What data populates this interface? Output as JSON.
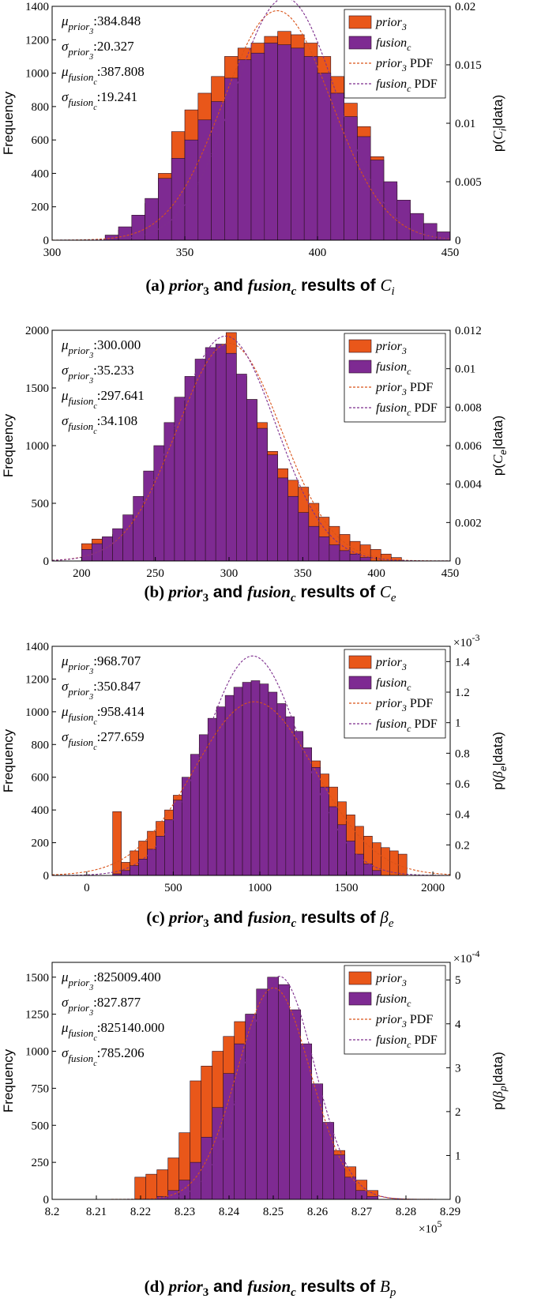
{
  "colors": {
    "prior": "#E9571A",
    "fusion": "#7E2A92",
    "prior_pdf": "#D95319",
    "fusion_pdf": "#7E2F8E",
    "bar_edge": "#3a1a1a"
  },
  "chart_data": [
    {
      "type": "bar",
      "panel": "a",
      "xlim": [
        300,
        450
      ],
      "xticks": [
        300,
        350,
        400,
        450
      ],
      "ylim": [
        0,
        1400
      ],
      "yticks": [
        0,
        200,
        400,
        600,
        800,
        1000,
        1200,
        1400
      ],
      "y2lim": [
        0,
        0.02
      ],
      "y2ticks": [
        "0",
        "0.005",
        "0.01",
        "0.015",
        "0.02"
      ],
      "y2exponent": "",
      "xlabel": "",
      "ylabel": "Frequency",
      "y2label": "p(C_i|data)",
      "stats": [
        {
          "sym": "μ",
          "sub": "prior",
          "subsub": "3",
          "value": ":384.848"
        },
        {
          "sym": "σ",
          "sub": "prior",
          "subsub": "3",
          "value": ":20.327"
        },
        {
          "sym": "μ",
          "sub": "fusion",
          "subsub": "c",
          "value": ":387.808"
        },
        {
          "sym": "σ",
          "sub": "fusion",
          "subsub": "c",
          "value": ":19.241"
        }
      ],
      "legend": {
        "prior": "prior",
        "prior_sub": "3",
        "fusion": "fusion",
        "fusion_sub": "c",
        "pdf_word": "PDF"
      },
      "caption": {
        "label": "(a)",
        "p1": "prior",
        "p1sub": "3",
        "and": "and",
        "p2": "fusion",
        "p2sub": "c",
        "rest": "results of",
        "sym": "C",
        "symsub": "i"
      },
      "series": [
        {
          "name": "prior3",
          "edges": [
            320,
            325,
            330,
            335,
            340,
            345,
            350,
            355,
            360,
            365,
            370,
            375,
            380,
            385,
            390,
            395,
            400,
            405,
            410,
            415,
            420,
            425,
            430,
            435,
            440
          ],
          "values": [
            30,
            60,
            120,
            220,
            400,
            650,
            780,
            880,
            980,
            1100,
            1150,
            1180,
            1220,
            1250,
            1230,
            1180,
            1100,
            980,
            820,
            680,
            500,
            330,
            180,
            90
          ]
        },
        {
          "name": "fusionc",
          "edges": [
            320,
            325,
            330,
            335,
            340,
            345,
            350,
            355,
            360,
            365,
            370,
            375,
            380,
            385,
            390,
            395,
            400,
            405,
            410,
            415,
            420,
            425,
            430,
            435,
            440,
            445,
            450
          ],
          "values": [
            30,
            80,
            150,
            250,
            370,
            490,
            600,
            720,
            830,
            970,
            1080,
            1120,
            1180,
            1170,
            1150,
            1100,
            1000,
            880,
            740,
            620,
            480,
            350,
            240,
            160,
            100,
            50
          ]
        },
        {
          "name": "prior3 PDF",
          "mu": 384.848,
          "sigma": 20.327
        },
        {
          "name": "fusionc PDF",
          "mu": 387.808,
          "sigma": 19.241
        }
      ]
    },
    {
      "type": "bar",
      "panel": "b",
      "xlim": [
        180,
        450
      ],
      "xticks": [
        200,
        250,
        300,
        350,
        400,
        450
      ],
      "ylim": [
        0,
        2000
      ],
      "yticks": [
        0,
        500,
        1000,
        1500,
        2000
      ],
      "y2lim": [
        0,
        0.012
      ],
      "y2ticks": [
        "0",
        "0.002",
        "0.004",
        "0.006",
        "0.008",
        "0.01",
        "0.012"
      ],
      "y2exponent": "",
      "xlabel": "",
      "ylabel": "Frequency",
      "y2label": "p(C_e|data)",
      "stats": [
        {
          "sym": "μ",
          "sub": "prior",
          "subsub": "3",
          "value": ":300.000"
        },
        {
          "sym": "σ",
          "sub": "prior",
          "subsub": "3",
          "value": ":35.233"
        },
        {
          "sym": "μ",
          "sub": "fusion",
          "subsub": "c",
          "value": ":297.641"
        },
        {
          "sym": "σ",
          "sub": "fusion",
          "subsub": "c",
          "value": ":34.108"
        }
      ],
      "legend": {
        "prior": "prior",
        "prior_sub": "3",
        "fusion": "fusion",
        "fusion_sub": "c",
        "pdf_word": "PDF"
      },
      "caption": {
        "label": "(b)",
        "p1": "prior",
        "p1sub": "3",
        "and": "and",
        "p2": "fusion",
        "p2sub": "c",
        "rest": "results of",
        "sym": "C",
        "symsub": "e"
      },
      "series": [
        {
          "name": "prior3",
          "edges": [
            200,
            207,
            214,
            221,
            228,
            235,
            242,
            249,
            256,
            263,
            270,
            277,
            284,
            291,
            298,
            305,
            312,
            319,
            326,
            333,
            340,
            347,
            354,
            361,
            368,
            375,
            382,
            389,
            396,
            403,
            410,
            417
          ],
          "values": [
            150,
            190,
            200,
            230,
            260,
            350,
            500,
            700,
            900,
            1100,
            1300,
            1450,
            1600,
            1750,
            1980,
            1600,
            1400,
            1200,
            950,
            800,
            700,
            640,
            500,
            380,
            300,
            230,
            170,
            140,
            100,
            60,
            30
          ]
        },
        {
          "name": "fusionc",
          "edges": [
            200,
            207,
            214,
            221,
            228,
            235,
            242,
            249,
            256,
            263,
            270,
            277,
            284,
            291,
            298,
            305,
            312,
            319,
            326,
            333,
            340,
            347,
            354,
            361,
            368,
            375,
            382,
            389,
            396
          ],
          "values": [
            100,
            150,
            210,
            280,
            400,
            560,
            780,
            1000,
            1200,
            1420,
            1600,
            1750,
            1850,
            1880,
            1800,
            1620,
            1400,
            1150,
            920,
            720,
            560,
            420,
            300,
            210,
            140,
            90,
            60,
            30
          ]
        },
        {
          "name": "prior3 PDF",
          "mu": 300.0,
          "sigma": 35.233
        },
        {
          "name": "fusionc PDF",
          "mu": 297.641,
          "sigma": 34.108
        }
      ]
    },
    {
      "type": "bar",
      "panel": "c",
      "xlim": [
        -200,
        2100
      ],
      "xticks": [
        0,
        500,
        1000,
        1500,
        2000
      ],
      "ylim": [
        0,
        1400
      ],
      "yticks": [
        0,
        200,
        400,
        600,
        800,
        1000,
        1200,
        1400
      ],
      "y2lim": [
        0,
        1.5
      ],
      "y2ticks": [
        "0",
        "0.2",
        "0.4",
        "0.6",
        "0.8",
        "1",
        "1.2",
        "1.4"
      ],
      "y2exponent": "×10",
      "y2exponent_power": "-3",
      "xlabel": "",
      "ylabel": "Frequency",
      "y2label": "p(β_e|data)",
      "stats": [
        {
          "sym": "μ",
          "sub": "prior",
          "subsub": "3",
          "value": ":968.707"
        },
        {
          "sym": "σ",
          "sub": "prior",
          "subsub": "3",
          "value": ":350.847"
        },
        {
          "sym": "μ",
          "sub": "fusion",
          "subsub": "c",
          "value": ":958.414"
        },
        {
          "sym": "σ",
          "sub": "fusion",
          "subsub": "c",
          "value": ":277.659"
        }
      ],
      "legend": {
        "prior": "prior",
        "prior_sub": "3",
        "fusion": "fusion",
        "fusion_sub": "c",
        "pdf_word": "PDF"
      },
      "caption": {
        "label": "(c)",
        "p1": "prior",
        "p1sub": "3",
        "and": "and",
        "p2": "fusion",
        "p2sub": "c",
        "rest": "results of",
        "sym": "β",
        "symsub": "e"
      },
      "series": [
        {
          "name": "prior3",
          "edges": [
            150,
            200,
            250,
            300,
            350,
            400,
            450,
            500,
            550,
            600,
            650,
            700,
            750,
            800,
            850,
            900,
            950,
            1000,
            1050,
            1100,
            1150,
            1200,
            1250,
            1300,
            1350,
            1400,
            1450,
            1500,
            1550,
            1600,
            1650,
            1700,
            1750,
            1800,
            1850
          ],
          "values": [
            390,
            80,
            150,
            210,
            270,
            330,
            400,
            490,
            580,
            700,
            780,
            830,
            870,
            920,
            950,
            980,
            1000,
            990,
            970,
            940,
            900,
            850,
            780,
            700,
            620,
            540,
            450,
            370,
            300,
            240,
            200,
            170,
            150,
            130
          ]
        },
        {
          "name": "fusionc",
          "edges": [
            150,
            200,
            250,
            300,
            350,
            400,
            450,
            500,
            550,
            600,
            650,
            700,
            750,
            800,
            850,
            900,
            950,
            1000,
            1050,
            1100,
            1150,
            1200,
            1250,
            1300,
            1350,
            1400,
            1450,
            1500,
            1550,
            1600,
            1650,
            1700
          ],
          "values": [
            10,
            30,
            60,
            100,
            160,
            240,
            340,
            460,
            600,
            740,
            860,
            960,
            1030,
            1100,
            1150,
            1180,
            1190,
            1170,
            1120,
            1050,
            970,
            880,
            780,
            660,
            540,
            420,
            310,
            210,
            130,
            70,
            30
          ]
        },
        {
          "name": "prior3 PDF",
          "mu": 968.707,
          "sigma": 350.847
        },
        {
          "name": "fusionc PDF",
          "mu": 958.414,
          "sigma": 277.659
        }
      ]
    },
    {
      "type": "bar",
      "panel": "d",
      "xlim": [
        8.2,
        8.29
      ],
      "xticks": [
        8.2,
        8.21,
        8.22,
        8.23,
        8.24,
        8.25,
        8.26,
        8.27,
        8.28,
        8.29
      ],
      "xtick_labels": [
        "8.2",
        "8.21",
        "8.22",
        "8.23",
        "8.24",
        "8.25",
        "8.26",
        "8.27",
        "8.28",
        "8.29"
      ],
      "xexponent": "×10",
      "xexponent_power": "5",
      "ylim": [
        0,
        1600
      ],
      "yticks": [
        0,
        250,
        500,
        750,
        1000,
        1250,
        1500
      ],
      "y2lim": [
        0,
        5.4
      ],
      "y2ticks": [
        "0",
        "1",
        "2",
        "3",
        "4",
        "5"
      ],
      "y2exponent": "×10",
      "y2exponent_power": "-4",
      "xlabel": "",
      "ylabel": "Frequency",
      "y2label": "p(β_p|data)",
      "stats": [
        {
          "sym": "μ",
          "sub": "prior",
          "subsub": "3",
          "value": ":825009.400"
        },
        {
          "sym": "σ",
          "sub": "prior",
          "subsub": "3",
          "value": ":827.877"
        },
        {
          "sym": "μ",
          "sub": "fusion",
          "subsub": "c",
          "value": ":825140.000"
        },
        {
          "sym": "σ",
          "sub": "fusion",
          "subsub": "c",
          "value": ":785.206"
        }
      ],
      "legend": {
        "prior": "prior",
        "prior_sub": "3",
        "fusion": "fusion",
        "fusion_sub": "c",
        "pdf_word": "PDF"
      },
      "caption": {
        "label": "(d)",
        "p1": "prior",
        "p1sub": "3",
        "and": "and",
        "p2": "fusion",
        "p2sub": "c",
        "rest": "results of",
        "sym": "B",
        "symsub": "p"
      },
      "series": [
        {
          "name": "prior3",
          "edges": [
            8.2187,
            8.2212,
            8.2237,
            8.2262,
            8.2287,
            8.2312,
            8.2337,
            8.2362,
            8.2387,
            8.2412,
            8.2437,
            8.2462,
            8.2487,
            8.2512,
            8.2537,
            8.2562,
            8.2587,
            8.2612,
            8.2637,
            8.2662,
            8.2687,
            8.2712,
            8.2737
          ],
          "values": [
            150,
            170,
            200,
            280,
            450,
            800,
            900,
            1000,
            1100,
            1200,
            1250,
            1280,
            1250,
            1150,
            1000,
            850,
            650,
            480,
            330,
            220,
            130,
            60
          ]
        },
        {
          "name": "fusionc",
          "edges": [
            8.2237,
            8.2262,
            8.2287,
            8.2312,
            8.2337,
            8.2362,
            8.2387,
            8.2412,
            8.2437,
            8.2462,
            8.2487,
            8.2512,
            8.2537,
            8.2562,
            8.2587,
            8.2612,
            8.2637,
            8.2662,
            8.2687,
            8.2712,
            8.2737
          ],
          "values": [
            20,
            60,
            130,
            250,
            420,
            620,
            850,
            1050,
            1250,
            1420,
            1500,
            1450,
            1280,
            1050,
            780,
            520,
            300,
            150,
            60,
            20
          ]
        },
        {
          "name": "prior3 PDF",
          "mu": 8.250094,
          "sigma": 0.00827877
        },
        {
          "name": "fusionc PDF",
          "mu": 8.2514,
          "sigma": 0.00785206
        }
      ]
    }
  ]
}
